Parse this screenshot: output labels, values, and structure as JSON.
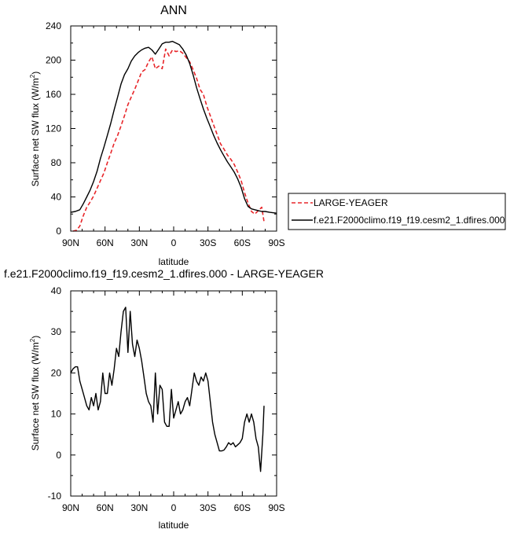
{
  "chart_data": [
    {
      "type": "line",
      "title": "ANN",
      "xlabel": "latitude",
      "ylabel": "Surface net SW flux (W/m",
      "ylabel_sup": "2",
      "ylabel_close": ")",
      "xlim": [
        90,
        -90
      ],
      "ylim": [
        0,
        240
      ],
      "x_ticks": [
        90,
        60,
        30,
        0,
        -30,
        -60,
        -90
      ],
      "x_tick_labels": [
        "90N",
        "60N",
        "30N",
        "0",
        "30S",
        "60S",
        "90S"
      ],
      "y_ticks": [
        0,
        40,
        80,
        120,
        160,
        200,
        240
      ],
      "y_tick_labels": [
        "0",
        "40",
        "80",
        "120",
        "160",
        "200",
        "240"
      ],
      "legend": {
        "placement": "right",
        "entries": [
          "LARGE-YEAGER",
          "f.e21.F2000climo.f19_f19.cesm2_1.dfires.000"
        ]
      },
      "series": [
        {
          "name": "LARGE-YEAGER",
          "color": "#e8262a",
          "dash": "dashed",
          "x": [
            88,
            85,
            82,
            79,
            76,
            73,
            70,
            67,
            64,
            61,
            58,
            55,
            52,
            49,
            46,
            43,
            40,
            37,
            34,
            31,
            28,
            25,
            22,
            19,
            16,
            13,
            10,
            7,
            4,
            1,
            -2,
            -5,
            -8,
            -11,
            -14,
            -17,
            -20,
            -23,
            -26,
            -29,
            -32,
            -35,
            -38,
            -41,
            -44,
            -47,
            -50,
            -53,
            -56,
            -59,
            -62,
            -65,
            -68,
            -71,
            -74,
            -77,
            -79
          ],
          "y": [
            0,
            1,
            6,
            18,
            28,
            34,
            41,
            50,
            59,
            68,
            80,
            91,
            103,
            112,
            123,
            135,
            148,
            157,
            166,
            176,
            186,
            189,
            198,
            204,
            190,
            193,
            190,
            213,
            205,
            212,
            210,
            211,
            208,
            203,
            198,
            189,
            179,
            166,
            160,
            146,
            135,
            124,
            113,
            102,
            96,
            89,
            84,
            78,
            69,
            59,
            45,
            33,
            23,
            20,
            24,
            28,
            11
          ]
        },
        {
          "name": "f.e21.F2000climo.f19_f19.cesm2_1.dfires.000",
          "color": "#000000",
          "dash": "solid",
          "x": [
            90,
            86,
            82,
            79,
            76,
            73,
            70,
            67,
            64,
            61,
            58,
            55,
            52,
            49,
            46,
            43,
            40,
            37,
            34,
            31,
            28,
            25,
            22,
            19,
            16,
            13,
            10,
            7,
            4,
            1,
            -2,
            -5,
            -8,
            -11,
            -14,
            -17,
            -20,
            -23,
            -26,
            -29,
            -32,
            -35,
            -38,
            -41,
            -44,
            -47,
            -50,
            -53,
            -56,
            -59,
            -62,
            -65,
            -68,
            -71,
            -74,
            -77,
            -80,
            -84,
            -90
          ],
          "y": [
            22,
            23,
            25,
            32,
            40,
            48,
            58,
            70,
            85,
            98,
            112,
            126,
            142,
            157,
            172,
            183,
            190,
            199,
            205,
            209,
            212,
            214,
            215,
            212,
            207,
            213,
            219,
            221,
            221,
            222,
            220,
            218,
            213,
            206,
            196,
            183,
            168,
            155,
            143,
            132,
            122,
            112,
            103,
            95,
            88,
            81,
            75,
            69,
            61,
            51,
            38,
            29,
            26,
            25,
            24,
            23,
            23,
            22,
            21
          ]
        }
      ]
    },
    {
      "type": "line",
      "title": "f.e21.F2000climo.f19_f19.cesm2_1.dfires.000 - LARGE-YEAGER",
      "xlabel": "latitude",
      "ylabel": "Surface net SW flux (W/m",
      "ylabel_sup": "2",
      "ylabel_close": ")",
      "xlim": [
        90,
        -90
      ],
      "ylim": [
        -10,
        40
      ],
      "x_ticks": [
        90,
        60,
        30,
        0,
        -30,
        -60,
        -90
      ],
      "x_tick_labels": [
        "90N",
        "60N",
        "30N",
        "0",
        "30S",
        "60S",
        "90S"
      ],
      "y_ticks": [
        -10,
        0,
        10,
        20,
        30,
        40
      ],
      "y_tick_labels": [
        "-10",
        "0",
        "10",
        "20",
        "30",
        "40"
      ],
      "series": [
        {
          "color": "#000000",
          "dash": "solid",
          "x": [
            90,
            88,
            86,
            84,
            82,
            80,
            78,
            76,
            74,
            72,
            70,
            68,
            66,
            64,
            62,
            60,
            58,
            56,
            54,
            52,
            50,
            48,
            46,
            44,
            42,
            40,
            38,
            36,
            34,
            32,
            30,
            28,
            26,
            24,
            22,
            20,
            18,
            16,
            14,
            12,
            10,
            8,
            6,
            4,
            2,
            0,
            -2,
            -4,
            -6,
            -8,
            -10,
            -12,
            -14,
            -16,
            -18,
            -20,
            -22,
            -24,
            -26,
            -28,
            -30,
            -32,
            -34,
            -36,
            -38,
            -40,
            -42,
            -44,
            -46,
            -48,
            -50,
            -52,
            -54,
            -56,
            -58,
            -60,
            -62,
            -64,
            -66,
            -68,
            -70,
            -72,
            -74,
            -76,
            -78,
            -79
          ],
          "y": [
            20,
            21,
            21.5,
            21.5,
            18,
            16,
            14,
            12,
            11,
            14,
            12,
            15,
            11,
            13,
            20,
            15,
            15,
            20,
            17,
            21,
            26,
            24,
            30,
            35,
            36,
            25,
            35,
            27,
            24,
            28,
            26,
            23,
            19,
            15,
            13,
            12,
            8,
            20,
            10,
            17,
            16,
            8,
            7,
            7,
            16,
            9,
            11,
            13,
            10,
            11,
            13,
            14,
            12,
            16,
            20,
            18,
            17,
            19,
            18,
            20,
            18,
            13,
            8,
            5,
            3,
            1,
            1,
            1.2,
            2,
            3,
            2.5,
            3,
            2,
            2.5,
            3,
            4,
            8,
            10,
            8,
            10,
            8,
            4,
            2,
            -4,
            5,
            12
          ]
        }
      ]
    }
  ]
}
